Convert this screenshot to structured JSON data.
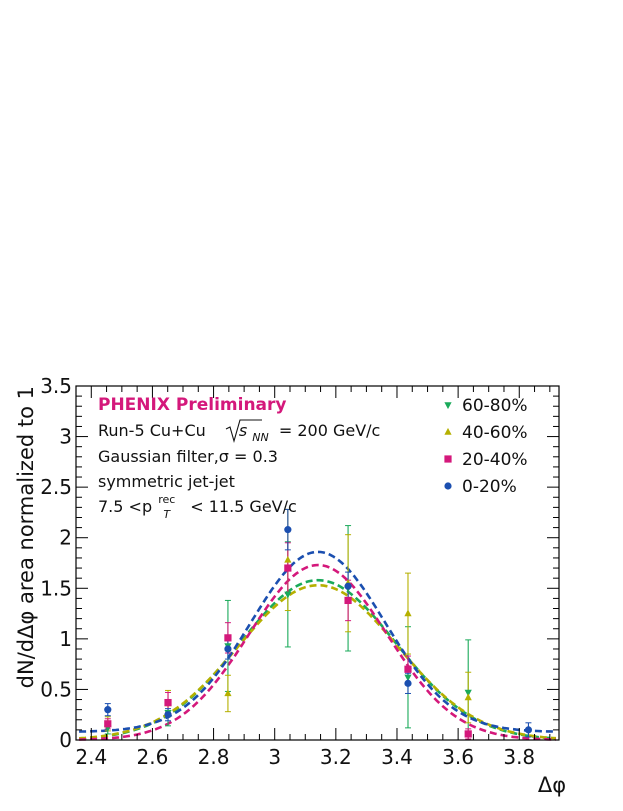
{
  "chart_data": {
    "type": "scatter",
    "xlabel": "Δφ",
    "ylabel": "dN/dΔφ area normalized to 1",
    "xlim": [
      2.35,
      3.93
    ],
    "ylim": [
      0,
      3.5
    ],
    "x_ticks": [
      2.4,
      2.6,
      2.8,
      3.0,
      3.2,
      3.4,
      3.6,
      3.8
    ],
    "x_tick_labels": [
      "2.4",
      "2.6",
      "2.8",
      "3",
      "3.2",
      "3.4",
      "3.6",
      "3.8"
    ],
    "y_ticks": [
      0,
      0.5,
      1.0,
      1.5,
      2.0,
      2.5,
      3.0,
      3.5
    ],
    "y_tick_labels": [
      "0",
      "0.5",
      "1",
      "1.5",
      "2",
      "2.5",
      "3",
      "3.5"
    ],
    "legend_position": "top-right",
    "annotations": {
      "title": "PHENIX Preliminary",
      "title_color": "#d4187b",
      "line1_prefix": "Run-5 Cu+Cu",
      "line1_sub": "NN",
      "line1_suffix": "= 200 GeV/c",
      "line2": "Gaussian filter,σ = 0.3",
      "line3": "symmetric jet-jet",
      "line4_prefix": "7.5 <p",
      "line4_sup": "rec",
      "line4_sub": "T",
      "line4_suffix": "< 11.5 GeV/c"
    },
    "series": [
      {
        "name": "60-80%",
        "color": "#1aaa5a",
        "marker": "triangle-down",
        "x": [
          2.454,
          2.651,
          2.847,
          3.043,
          3.24,
          3.436,
          3.633
        ],
        "y": [
          0.12,
          0.27,
          0.93,
          1.44,
          1.5,
          0.62,
          0.47
        ],
        "err": [
          0.06,
          0.13,
          0.45,
          0.52,
          0.62,
          0.5,
          0.52
        ],
        "fit_amp": 1.58,
        "fit_sigma": 0.255,
        "fit_offset": 0.0
      },
      {
        "name": "40-60%",
        "color": "#b5b000",
        "marker": "triangle-up",
        "x": [
          2.454,
          2.651,
          2.847,
          3.043,
          3.24,
          3.436,
          3.633
        ],
        "y": [
          0.16,
          0.36,
          0.46,
          1.78,
          1.55,
          1.25,
          0.42
        ],
        "err": [
          0.07,
          0.13,
          0.18,
          0.5,
          0.48,
          0.4,
          0.25
        ],
        "fit_amp": 1.53,
        "fit_sigma": 0.26,
        "fit_offset": 0.0
      },
      {
        "name": "20-40%",
        "color": "#d4187b",
        "marker": "square",
        "x": [
          2.454,
          2.651,
          2.847,
          3.043,
          3.24,
          3.436,
          3.633
        ],
        "y": [
          0.16,
          0.37,
          1.01,
          1.7,
          1.38,
          0.7,
          0.06
        ],
        "err": [
          0.05,
          0.1,
          0.15,
          0.25,
          0.2,
          0.13,
          0.05
        ],
        "fit_amp": 1.73,
        "fit_sigma": 0.225,
        "fit_offset": 0.0
      },
      {
        "name": "0-20%",
        "color": "#1b4fb0",
        "marker": "circle",
        "x": [
          2.454,
          2.651,
          2.847,
          3.043,
          3.24,
          3.436,
          3.83
        ],
        "y": [
          0.3,
          0.25,
          0.9,
          2.08,
          1.52,
          0.56,
          0.1
        ],
        "err": [
          0.06,
          0.06,
          0.1,
          0.2,
          0.14,
          0.1,
          0.07
        ],
        "fit_amp": 1.78,
        "fit_sigma": 0.22,
        "fit_offset": 0.08
      }
    ]
  }
}
